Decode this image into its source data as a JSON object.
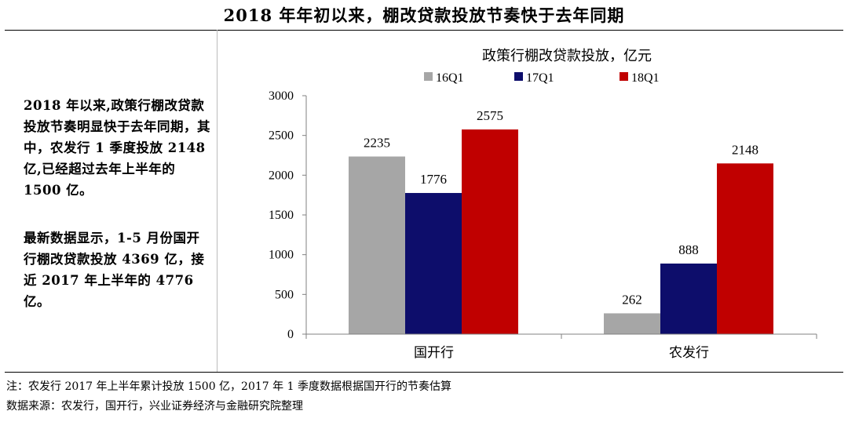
{
  "header": {
    "title": "2018 年年初以来，棚改贷款投放节奏快于去年同期"
  },
  "sidebar": {
    "paragraph1": "2018 年以来,政策行棚改贷款投放节奏明显快于去年同期，其中，农发行 1 季度投放 2148 亿,已经超过去年上半年的 1500 亿。",
    "paragraph2": "最新数据显示，1-5 月份国开行棚改贷款投放 4369 亿，接近 2017 年上半年的 4776 亿。"
  },
  "footer": {
    "note": "注：农发行 2017 年上半年累计投放 1500 亿，2017 年 1 季度数据根据国开行的节奏估算",
    "source": "数据来源：农发行，国开行，兴业证券经济与金融研究院整理"
  },
  "colors": {
    "s16Q1": "#a6a6a6",
    "s17Q1": "#0d0d6b",
    "s18Q1": "#c00000",
    "axis": "#808080"
  },
  "chart_data": {
    "type": "bar",
    "title": "政策行棚改贷款投放，亿元",
    "categories": [
      "国开行",
      "农发行"
    ],
    "series": [
      {
        "name": "16Q1",
        "values": [
          2235,
          262
        ]
      },
      {
        "name": "17Q1",
        "values": [
          1776,
          888
        ]
      },
      {
        "name": "18Q1",
        "values": [
          2575,
          2148
        ]
      }
    ],
    "ylim": [
      0,
      3000
    ],
    "yticks": [
      0,
      500,
      1000,
      1500,
      2000,
      2500,
      3000
    ],
    "xlabel": "",
    "ylabel": "",
    "legend_position": "top",
    "grid": false
  }
}
